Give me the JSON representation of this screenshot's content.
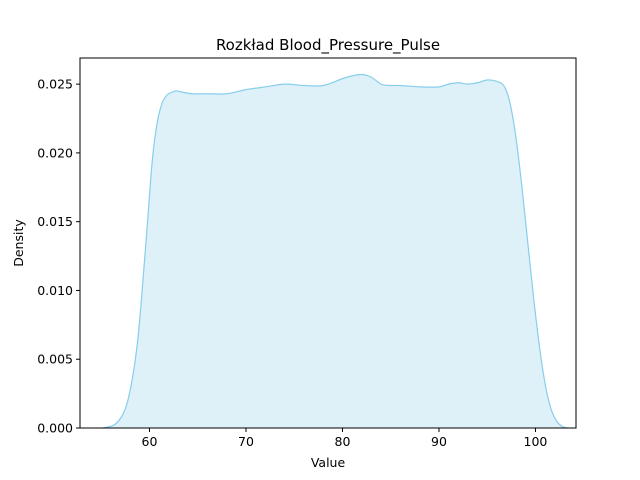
{
  "chart_data": {
    "type": "area",
    "title": "Rozkład Blood_Pressure_Pulse",
    "xlabel": "Value",
    "ylabel": "Density",
    "xlim": [
      52.8,
      104.2
    ],
    "ylim": [
      0,
      0.0269
    ],
    "x_ticks": [
      60,
      70,
      80,
      90,
      100
    ],
    "x_tick_labels": [
      "60",
      "70",
      "80",
      "90",
      "100"
    ],
    "y_ticks": [
      0,
      0.005,
      0.01,
      0.015,
      0.02,
      0.025
    ],
    "y_tick_labels": [
      "0.000",
      "0.005",
      "0.010",
      "0.015",
      "0.020",
      "0.025"
    ],
    "grid": false,
    "series": [
      {
        "color_line": "#87ceeb",
        "color_fill": "#87ceeb",
        "fill_opacity": 0.28,
        "x": [
          55.2,
          56.5,
          57.5,
          58.2,
          58.8,
          59.3,
          59.8,
          60.3,
          60.8,
          61.3,
          61.8,
          62.3,
          62.8,
          63.5,
          64.5,
          66,
          68,
          70,
          72,
          74,
          76,
          78,
          80,
          81,
          82,
          83,
          84,
          85,
          86,
          88,
          90,
          91,
          92,
          93,
          94,
          95,
          96,
          96.8,
          97.4,
          98,
          98.6,
          99.2,
          99.8,
          100.4,
          101,
          101.6,
          102.2,
          102.8,
          103.4
        ],
        "y": [
          0.0,
          0.0003,
          0.0014,
          0.0035,
          0.0065,
          0.0105,
          0.015,
          0.0195,
          0.0222,
          0.0236,
          0.0242,
          0.0244,
          0.0245,
          0.0244,
          0.0243,
          0.0243,
          0.0243,
          0.0246,
          0.0248,
          0.025,
          0.0249,
          0.0249,
          0.0254,
          0.0256,
          0.0257,
          0.0255,
          0.025,
          0.0249,
          0.0249,
          0.0248,
          0.0248,
          0.025,
          0.0251,
          0.025,
          0.0251,
          0.0253,
          0.0252,
          0.0248,
          0.0235,
          0.021,
          0.0175,
          0.0135,
          0.0095,
          0.006,
          0.0032,
          0.0014,
          0.0005,
          0.0001,
          0.0
        ]
      }
    ]
  }
}
